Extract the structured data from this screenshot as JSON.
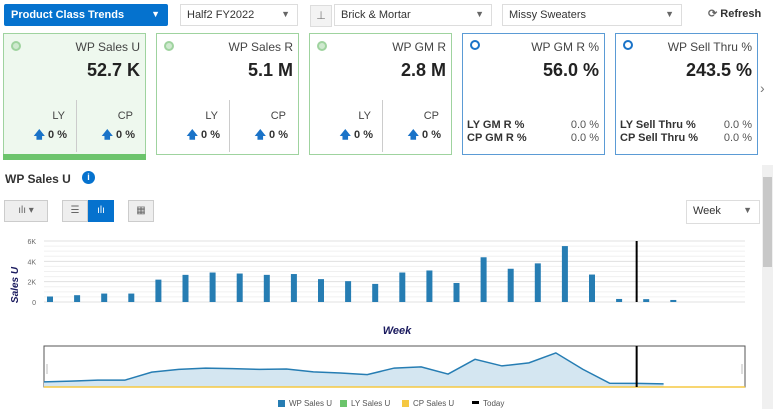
{
  "header": {
    "view": "Product Class Trends",
    "period": "Half2 FY2022",
    "channel": "Brick & Mortar",
    "product": "Missy Sweaters",
    "refresh": "Refresh"
  },
  "cards": [
    {
      "title": "WP Sales U",
      "value": "52.7 K",
      "ly_label": "LY",
      "ly": "0 %",
      "cp_label": "CP",
      "cp": "0 %"
    },
    {
      "title": "WP Sales R",
      "value": "5.1 M",
      "ly_label": "LY",
      "ly": "0 %",
      "cp_label": "CP",
      "cp": "0 %"
    },
    {
      "title": "WP GM R",
      "value": "2.8 M",
      "ly_label": "LY",
      "ly": "0 %",
      "cp_label": "CP",
      "cp": "0 %"
    },
    {
      "title": "WP GM R %",
      "value": "56.0 %",
      "r1_label": "LY GM R %",
      "r1": "0.0 %",
      "r2_label": "CP GM R %",
      "r2": "0.0 %"
    },
    {
      "title": "WP Sell Thru %",
      "value": "243.5 %",
      "r1_label": "LY Sell Thru %",
      "r1": "0.0 %",
      "r2_label": "CP Sell Thru %",
      "r2": "0.0 %"
    }
  ],
  "chart_section": {
    "title": "WP Sales U",
    "granularity": "Week"
  },
  "colors": {
    "accent": "#0572ce",
    "bar": "#267db3",
    "green": "#9fd39f"
  },
  "chart_data": {
    "type": "bar",
    "xlabel": "Week",
    "ylabel": "Sales U",
    "ylim": [
      0,
      6000
    ],
    "yticks": [
      "0",
      "2K",
      "4K",
      "6K"
    ],
    "grid": true,
    "today_index_after": 22,
    "series": [
      {
        "name": "WP Sales U",
        "values": [
          540,
          670,
          830,
          830,
          2200,
          2670,
          2900,
          2800,
          2670,
          2750,
          2250,
          2050,
          1780,
          2900,
          3100,
          1870,
          4400,
          3270,
          3800,
          5500,
          2700,
          300,
          280,
          200
        ]
      }
    ],
    "legend": [
      "WP Sales U",
      "LY Sales U",
      "CP Sales U",
      "Today"
    ],
    "legend_colors": [
      "#267db3",
      "#6cc46c",
      "#f5c842",
      "#000000"
    ],
    "legend_position": "bottom"
  }
}
